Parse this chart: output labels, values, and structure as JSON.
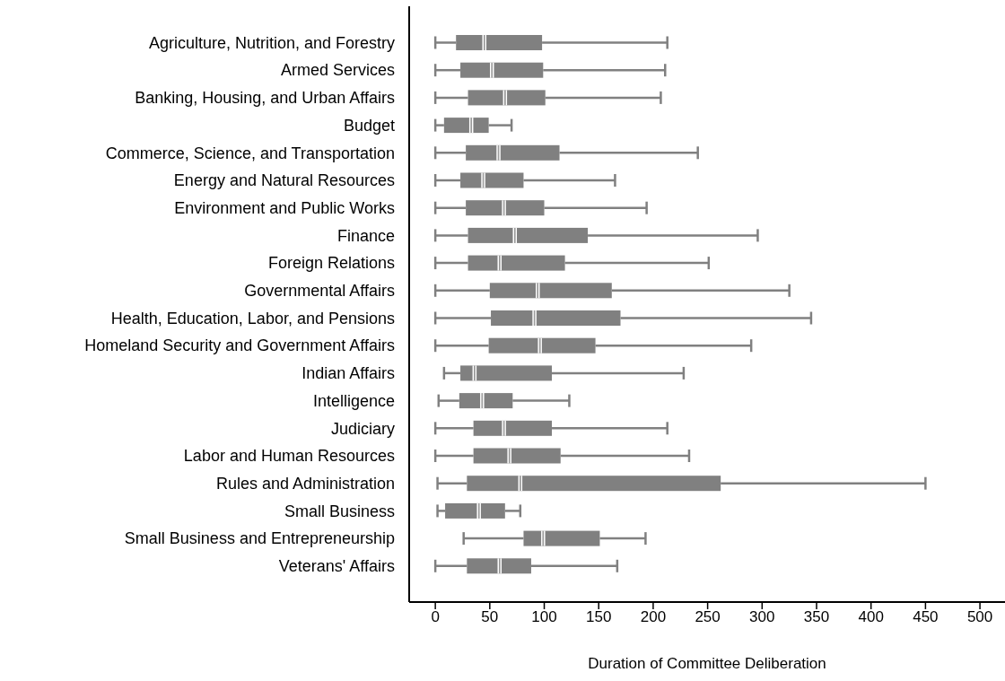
{
  "chart_data": {
    "type": "box",
    "orientation": "horizontal",
    "color": "#808080",
    "xlabel": "Duration of Committee Deliberation",
    "categories": [
      "Agriculture, Nutrition, and Forestry",
      "Armed Services",
      "Banking, Housing, and Urban Affairs",
      "Budget",
      "Commerce, Science, and Transportation",
      "Energy and Natural Resources",
      "Environment and Public Works",
      "Finance",
      "Foreign Relations",
      "Governmental Affairs",
      "Health, Education, Labor, and Pensions",
      "Homeland Security and Government Affairs",
      "Indian Affairs",
      "Intelligence",
      "Judiciary",
      "Labor and Human Resources",
      "Rules and Administration",
      "Small Business",
      "Small Business and Entrepreneurship",
      "Veterans' Affairs"
    ],
    "boxes": [
      {
        "low": 0,
        "q1": 19,
        "median": 45,
        "q3": 98,
        "high": 213
      },
      {
        "low": 0,
        "q1": 23,
        "median": 52,
        "q3": 99,
        "high": 211
      },
      {
        "low": 0,
        "q1": 30,
        "median": 64,
        "q3": 101,
        "high": 207
      },
      {
        "low": 0,
        "q1": 8,
        "median": 33,
        "q3": 49,
        "high": 70
      },
      {
        "low": 0,
        "q1": 28,
        "median": 58,
        "q3": 114,
        "high": 241
      },
      {
        "low": 0,
        "q1": 23,
        "median": 44,
        "q3": 81,
        "high": 165
      },
      {
        "low": 0,
        "q1": 28,
        "median": 63,
        "q3": 100,
        "high": 194
      },
      {
        "low": 0,
        "q1": 30,
        "median": 73,
        "q3": 140,
        "high": 296
      },
      {
        "low": 0,
        "q1": 30,
        "median": 59,
        "q3": 119,
        "high": 251
      },
      {
        "low": 0,
        "q1": 50,
        "median": 94,
        "q3": 162,
        "high": 325
      },
      {
        "low": 0,
        "q1": 51,
        "median": 91,
        "q3": 170,
        "high": 345
      },
      {
        "low": 0,
        "q1": 49,
        "median": 96,
        "q3": 147,
        "high": 290
      },
      {
        "low": 8,
        "q1": 23,
        "median": 36,
        "q3": 107,
        "high": 228
      },
      {
        "low": 3,
        "q1": 22,
        "median": 43,
        "q3": 71,
        "high": 123
      },
      {
        "low": 0,
        "q1": 35,
        "median": 63,
        "q3": 107,
        "high": 213
      },
      {
        "low": 0,
        "q1": 35,
        "median": 68,
        "q3": 115,
        "high": 233
      },
      {
        "low": 2,
        "q1": 29,
        "median": 78,
        "q3": 262,
        "high": 450
      },
      {
        "low": 2,
        "q1": 9,
        "median": 40,
        "q3": 64,
        "high": 78
      },
      {
        "low": 26,
        "q1": 81,
        "median": 99,
        "q3": 151,
        "high": 193
      },
      {
        "low": 0,
        "q1": 29,
        "median": 59,
        "q3": 88,
        "high": 167
      }
    ],
    "xlim": [
      -24,
      523
    ],
    "xticks": [
      0,
      50,
      100,
      150,
      200,
      250,
      300,
      350,
      400,
      450,
      500
    ]
  }
}
